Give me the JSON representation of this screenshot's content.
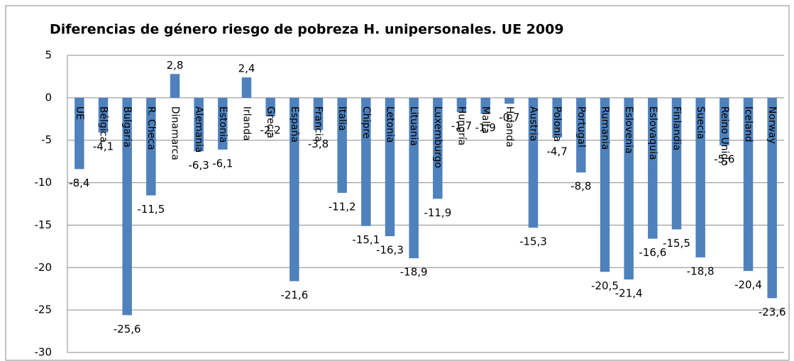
{
  "chart_data": {
    "type": "bar",
    "title": "Diferencias de género riesgo de pobreza H. unipersonales. UE 2009",
    "categories": [
      "UE",
      "Bélgica",
      "Bulgaria",
      "R. Checa",
      "Dinamarca",
      "Alemania",
      "Estonia",
      "Irlanda",
      "Grecia",
      "España",
      "Francia",
      "Italia",
      "Chipre",
      "Letonia",
      "Lituania",
      "Luxemburgo",
      "Hungría",
      "Malta",
      "Holanda",
      "Austria",
      "Polonia",
      "Portugal",
      "Rumania",
      "Eslovenia",
      "Eslovaquia",
      "Finlandia",
      "Suecia",
      "Reino Unido",
      "Iceland",
      "Norway"
    ],
    "values": [
      -8.4,
      -4.1,
      -25.6,
      -11.5,
      2.8,
      -6.3,
      -6.1,
      2.4,
      -2.2,
      -21.6,
      -3.8,
      -11.2,
      -15.1,
      -16.3,
      -18.9,
      -11.9,
      -1.7,
      -1.9,
      -0.7,
      -15.3,
      -4.7,
      -8.8,
      -20.5,
      -21.4,
      -16.6,
      -15.5,
      -18.8,
      -5.6,
      -20.4,
      -23.6
    ],
    "value_labels": [
      "-8,4",
      "-4,1",
      "-25,6",
      "-11,5",
      "2,8",
      "-6,3",
      "-6,1",
      "2,4",
      "-2,2",
      "-21,6",
      "-3,8",
      "-11,2",
      "-15,1",
      "-16,3",
      "-18,9",
      "-11,9",
      "-1,7",
      "-1,9",
      "-0,7",
      "-15,3",
      "-4,7",
      "-8,8",
      "-20,5",
      "-21,4",
      "-16,6",
      "-15,5",
      "-18,8",
      "-5,6",
      "-20,4",
      "-23,6"
    ],
    "color": "#4f81bd",
    "ylim": [
      -30,
      5
    ],
    "yticks": [
      5,
      0,
      -5,
      -10,
      -15,
      -20,
      -25,
      -30
    ],
    "grid": true
  }
}
